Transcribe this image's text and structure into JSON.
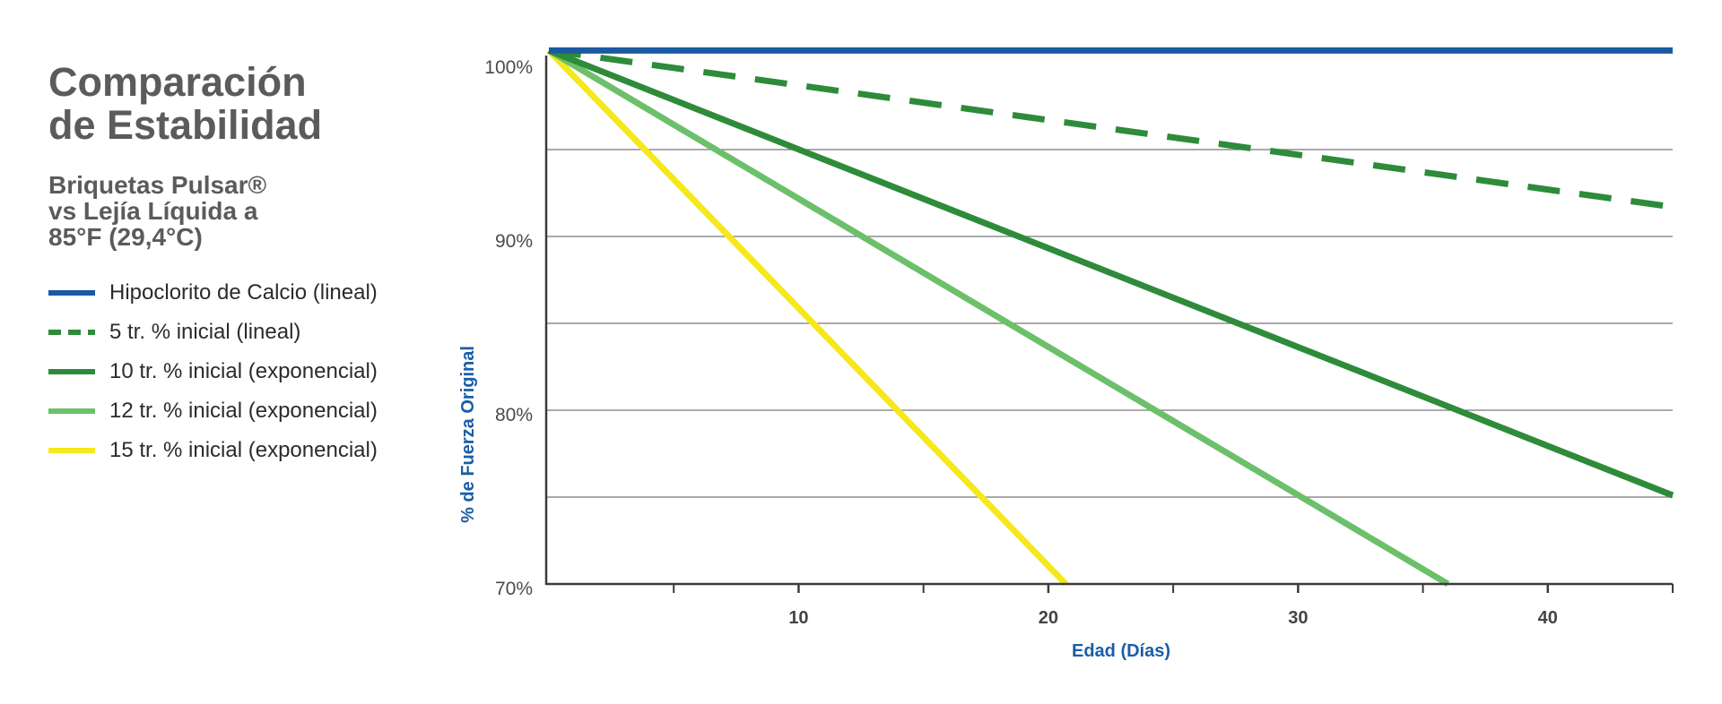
{
  "title_line1": "Comparación",
  "title_line2": "de Estabilidad",
  "subtitle_line1": "Briquetas Pulsar®",
  "subtitle_line2": "vs Lejía Líquida a",
  "subtitle_line3": "85°F (29,4°C)",
  "chart_data": {
    "type": "line",
    "xlabel": "Edad (Días)",
    "ylabel": "% de Fuerza Original",
    "xlim": [
      0,
      45
    ],
    "ylim": [
      70,
      100
    ],
    "x_ticks": [
      10,
      20,
      30,
      40
    ],
    "x_minor_ticks": [
      5,
      15,
      25,
      35,
      45
    ],
    "y_ticks": [
      {
        "value": 70,
        "label": "70%"
      },
      {
        "value": 80,
        "label": "80%"
      },
      {
        "value": 90,
        "label": "90%"
      },
      {
        "value": 100,
        "label": "100%"
      }
    ],
    "gridlines_y": [
      75,
      80,
      85,
      90,
      95
    ],
    "legend_position": "left",
    "series": [
      {
        "name": "Hipoclorito de Calcio (lineal)",
        "color": "#1b5aa1",
        "dash": "solid",
        "x": [
          0,
          45
        ],
        "y": [
          100.7,
          100.7
        ]
      },
      {
        "name": "5 tr. % inicial (lineal)",
        "color": "#2e8b3a",
        "dash": "dashed",
        "x": [
          0,
          45
        ],
        "y": [
          100.7,
          91.7
        ]
      },
      {
        "name": "10 tr. % inicial (exponencial)",
        "color": "#2e8b3a",
        "dash": "solid",
        "x": [
          0,
          45
        ],
        "y": [
          100.7,
          75.1
        ]
      },
      {
        "name": "12 tr. % inicial (exponencial)",
        "color": "#6cc06a",
        "dash": "solid",
        "x": [
          0,
          36
        ],
        "y": [
          100.7,
          70
        ]
      },
      {
        "name": "15 tr. % inicial (exponencial)",
        "color": "#f5e81c",
        "dash": "solid",
        "x": [
          0,
          20.7
        ],
        "y": [
          100.7,
          70
        ]
      }
    ]
  }
}
